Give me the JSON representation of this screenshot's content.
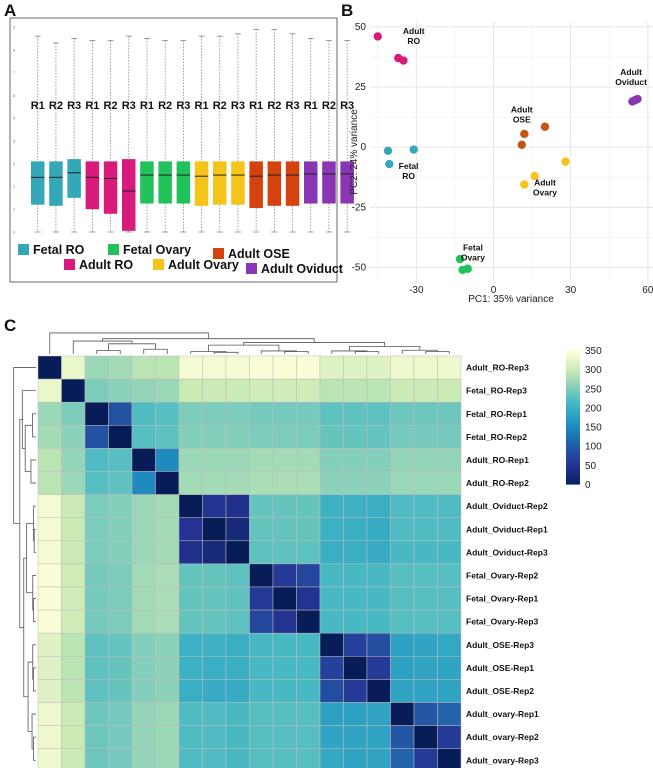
{
  "panels": {
    "a": "A",
    "b": "B",
    "c": "C"
  },
  "colors": {
    "fetal_ro": "#35a8b8",
    "adult_ro": "#d81b7a",
    "fetal_ovary": "#22c25a",
    "adult_ovary": "#f5c41a",
    "adult_ose": "#d4420f",
    "adult_oviduct": "#8a35b3",
    "ose_pca": "#c75412"
  },
  "chart_data": [
    {
      "type": "boxplot",
      "panel": "A",
      "y_ticks": [
        "0",
        "1",
        "2",
        "3",
        "4",
        "5",
        "6",
        "7",
        "8",
        "9"
      ],
      "ylim": [
        0,
        9
      ],
      "groups": [
        {
          "name": "Fetal RO",
          "color_key": "fetal_ro",
          "reps": [
            {
              "label": "R1",
              "q1": 1.2,
              "median": 2.4,
              "q3": 3.1,
              "wmax": 8.6,
              "wmin": 0
            },
            {
              "label": "R2",
              "q1": 1.15,
              "median": 2.4,
              "q3": 3.1,
              "wmax": 8.3,
              "wmin": 0
            },
            {
              "label": "R3",
              "q1": 1.5,
              "median": 2.6,
              "q3": 3.2,
              "wmax": 8.5,
              "wmin": 0
            }
          ]
        },
        {
          "name": "Adult RO",
          "color_key": "adult_ro",
          "reps": [
            {
              "label": "R1",
              "q1": 1.0,
              "median": 2.4,
              "q3": 3.1,
              "wmax": 8.4,
              "wmin": 0
            },
            {
              "label": "R2",
              "q1": 0.8,
              "median": 2.35,
              "q3": 3.1,
              "wmax": 8.4,
              "wmin": 0
            },
            {
              "label": "R3",
              "q1": 0.05,
              "median": 1.8,
              "q3": 3.2,
              "wmax": 8.6,
              "wmin": 0
            }
          ]
        },
        {
          "name": "Fetal Ovary",
          "color_key": "fetal_ovary",
          "reps": [
            {
              "label": "R1",
              "q1": 1.25,
              "median": 2.5,
              "q3": 3.1,
              "wmax": 8.5,
              "wmin": 0
            },
            {
              "label": "R2",
              "q1": 1.25,
              "median": 2.5,
              "q3": 3.1,
              "wmax": 8.4,
              "wmin": 0
            },
            {
              "label": "R3",
              "q1": 1.25,
              "median": 2.5,
              "q3": 3.1,
              "wmax": 8.4,
              "wmin": 0
            }
          ]
        },
        {
          "name": "Adult Ovary",
          "color_key": "adult_ovary",
          "reps": [
            {
              "label": "R1",
              "q1": 1.15,
              "median": 2.45,
              "q3": 3.1,
              "wmax": 8.6,
              "wmin": 0
            },
            {
              "label": "R2",
              "q1": 1.2,
              "median": 2.5,
              "q3": 3.1,
              "wmax": 8.6,
              "wmin": 0
            },
            {
              "label": "R3",
              "q1": 1.2,
              "median": 2.5,
              "q3": 3.1,
              "wmax": 8.7,
              "wmin": 0
            }
          ]
        },
        {
          "name": "Adult OSE",
          "color_key": "adult_ose",
          "reps": [
            {
              "label": "R1",
              "q1": 1.05,
              "median": 2.45,
              "q3": 3.1,
              "wmax": 8.9,
              "wmin": 0
            },
            {
              "label": "R2",
              "q1": 1.15,
              "median": 2.5,
              "q3": 3.1,
              "wmax": 8.9,
              "wmin": 0
            },
            {
              "label": "R3",
              "q1": 1.15,
              "median": 2.5,
              "q3": 3.1,
              "wmax": 8.7,
              "wmin": 0
            }
          ]
        },
        {
          "name": "Adult Oviduct",
          "color_key": "adult_oviduct",
          "reps": [
            {
              "label": "R1",
              "q1": 1.25,
              "median": 2.55,
              "q3": 3.1,
              "wmax": 8.5,
              "wmin": 0
            },
            {
              "label": "R2",
              "q1": 1.25,
              "median": 2.55,
              "q3": 3.1,
              "wmax": 8.4,
              "wmin": 0
            },
            {
              "label": "R3",
              "q1": 1.25,
              "median": 2.55,
              "q3": 3.1,
              "wmax": 8.4,
              "wmin": 0
            }
          ]
        }
      ],
      "legend": [
        {
          "label": "Fetal RO",
          "color_key": "fetal_ro"
        },
        {
          "label": "Fetal Ovary",
          "color_key": "fetal_ovary"
        },
        {
          "label": "Adult OSE",
          "color_key": "adult_ose"
        },
        {
          "label": "Adult RO",
          "color_key": "adult_ro"
        },
        {
          "label": "Adult Ovary",
          "color_key": "adult_ovary"
        },
        {
          "label": "Adult Oviduct",
          "color_key": "adult_oviduct"
        }
      ]
    },
    {
      "type": "scatter",
      "panel": "B",
      "xlabel": "PC1: 35% variance",
      "ylabel": "PC2: 24% variance",
      "xlim": [
        -48,
        62
      ],
      "ylim": [
        -56,
        52
      ],
      "x_ticks": [
        -30,
        0,
        30,
        60
      ],
      "y_ticks": [
        50,
        25,
        0,
        -25,
        -50
      ],
      "points": [
        {
          "group": "Adult RO",
          "color_key": "adult_ro",
          "x": -45,
          "y": 46
        },
        {
          "group": "Adult RO",
          "color_key": "adult_ro",
          "x": -37,
          "y": 37
        },
        {
          "group": "Adult RO",
          "color_key": "adult_ro",
          "x": -35,
          "y": 36
        },
        {
          "group": "Adult Oviduct",
          "color_key": "adult_oviduct",
          "x": 54,
          "y": 19
        },
        {
          "group": "Adult Oviduct",
          "color_key": "adult_oviduct",
          "x": 55,
          "y": 19.5
        },
        {
          "group": "Adult Oviduct",
          "color_key": "adult_oviduct",
          "x": 56,
          "y": 20
        },
        {
          "group": "Adult OSE",
          "color_key": "ose_pca",
          "x": 20,
          "y": 8.5
        },
        {
          "group": "Adult OSE",
          "color_key": "ose_pca",
          "x": 12,
          "y": 5.5
        },
        {
          "group": "Adult OSE",
          "color_key": "ose_pca",
          "x": 11,
          "y": 1
        },
        {
          "group": "Fetal RO",
          "color_key": "fetal_ro",
          "x": -41,
          "y": -1.5
        },
        {
          "group": "Fetal RO",
          "color_key": "fetal_ro",
          "x": -31,
          "y": -1
        },
        {
          "group": "Fetal RO",
          "color_key": "fetal_ro",
          "x": -40.5,
          "y": -7
        },
        {
          "group": "Adult Ovary",
          "color_key": "adult_ovary",
          "x": 28,
          "y": -6
        },
        {
          "group": "Adult Ovary",
          "color_key": "adult_ovary",
          "x": 16,
          "y": -12
        },
        {
          "group": "Adult Ovary",
          "color_key": "adult_ovary",
          "x": 12,
          "y": -15.5
        },
        {
          "group": "Fetal Ovary",
          "color_key": "fetal_ovary",
          "x": -13,
          "y": -46.5
        },
        {
          "group": "Fetal Ovary",
          "color_key": "fetal_ovary",
          "x": -12,
          "y": -51
        },
        {
          "group": "Fetal Ovary",
          "color_key": "fetal_ovary",
          "x": -10,
          "y": -50.5
        }
      ],
      "annotations": [
        {
          "lines": [
            "Adult",
            "RO"
          ],
          "x": -31,
          "y": 47
        },
        {
          "lines": [
            "Adult",
            "Oviduct"
          ],
          "x": 53.5,
          "y": 30
        },
        {
          "lines": [
            "Adult",
            "OSE"
          ],
          "x": 11,
          "y": 14.5
        },
        {
          "lines": [
            "Fetal",
            "RO"
          ],
          "x": -33,
          "y": -9
        },
        {
          "lines": [
            "Adult",
            "Ovary"
          ],
          "x": 20,
          "y": -16
        },
        {
          "lines": [
            "Fetal",
            "Ovary"
          ],
          "x": -8,
          "y": -43
        }
      ]
    },
    {
      "type": "heatmap",
      "panel": "C",
      "rows": [
        "Adult_RO-Rep3",
        "Fetal_RO-Rep3",
        "Fetal_RO-Rep1",
        "Fetal_RO-Rep2",
        "Adult_RO-Rep1",
        "Adult_RO-Rep2",
        "Adult_Oviduct-Rep2",
        "Adult_Oviduct-Rep1",
        "Adult_Oviduct-Rep3",
        "Fetal_Ovary-Rep2",
        "Fetal_Ovary-Rep1",
        "Fetal_Ovary-Rep3",
        "Adult_OSE-Rep3",
        "Adult_OSE-Rep1",
        "Adult_OSE-Rep2",
        "Adult_ovary-Rep1",
        "Adult_ovary-Rep2",
        "Adult_ovary-Rep3"
      ],
      "colorbar": {
        "min": 0,
        "max": 350,
        "ticks": [
          "350",
          "300",
          "250",
          "200",
          "150",
          "100",
          "50",
          "0"
        ]
      },
      "matrix": [
        [
          0,
          330,
          270,
          275,
          290,
          290,
          340,
          340,
          340,
          345,
          345,
          345,
          320,
          320,
          320,
          335,
          335,
          335
        ],
        [
          330,
          0,
          250,
          260,
          265,
          270,
          300,
          300,
          300,
          305,
          305,
          305,
          290,
          290,
          290,
          300,
          300,
          300
        ],
        [
          270,
          250,
          0,
          90,
          220,
          225,
          250,
          250,
          250,
          245,
          245,
          245,
          230,
          230,
          230,
          240,
          240,
          240
        ],
        [
          275,
          260,
          90,
          0,
          225,
          230,
          255,
          255,
          255,
          250,
          250,
          250,
          235,
          235,
          235,
          245,
          245,
          245
        ],
        [
          290,
          265,
          220,
          225,
          0,
          150,
          270,
          270,
          270,
          275,
          275,
          275,
          255,
          255,
          255,
          265,
          265,
          265
        ],
        [
          290,
          270,
          225,
          230,
          150,
          0,
          275,
          275,
          275,
          280,
          280,
          280,
          260,
          260,
          260,
          270,
          270,
          270
        ],
        [
          340,
          300,
          250,
          255,
          270,
          275,
          0,
          50,
          45,
          235,
          235,
          235,
          205,
          205,
          200,
          220,
          220,
          220
        ],
        [
          340,
          300,
          250,
          255,
          270,
          275,
          50,
          0,
          30,
          235,
          235,
          235,
          205,
          200,
          195,
          220,
          220,
          220
        ],
        [
          340,
          300,
          250,
          255,
          270,
          275,
          45,
          30,
          0,
          230,
          230,
          230,
          200,
          200,
          195,
          215,
          215,
          215
        ],
        [
          345,
          305,
          245,
          250,
          275,
          280,
          235,
          235,
          230,
          0,
          60,
          75,
          215,
          215,
          215,
          225,
          225,
          225
        ],
        [
          345,
          305,
          245,
          250,
          275,
          280,
          235,
          235,
          230,
          60,
          0,
          50,
          215,
          215,
          215,
          225,
          225,
          225
        ],
        [
          345,
          305,
          245,
          250,
          275,
          280,
          235,
          235,
          230,
          75,
          50,
          0,
          215,
          215,
          215,
          225,
          225,
          225
        ],
        [
          320,
          290,
          230,
          235,
          255,
          260,
          205,
          205,
          200,
          215,
          215,
          215,
          0,
          70,
          85,
          180,
          185,
          190
        ],
        [
          320,
          290,
          230,
          235,
          255,
          260,
          205,
          200,
          200,
          215,
          215,
          215,
          70,
          0,
          60,
          180,
          185,
          185
        ],
        [
          320,
          290,
          230,
          235,
          255,
          260,
          200,
          195,
          195,
          215,
          215,
          215,
          85,
          60,
          0,
          185,
          185,
          185
        ],
        [
          335,
          300,
          240,
          245,
          265,
          270,
          220,
          220,
          215,
          225,
          225,
          225,
          180,
          180,
          185,
          0,
          95,
          110
        ],
        [
          335,
          300,
          240,
          245,
          265,
          270,
          220,
          220,
          215,
          225,
          225,
          225,
          185,
          185,
          185,
          95,
          0,
          60
        ],
        [
          335,
          300,
          240,
          245,
          265,
          270,
          220,
          220,
          215,
          225,
          225,
          225,
          190,
          185,
          185,
          110,
          60,
          0
        ]
      ]
    }
  ]
}
